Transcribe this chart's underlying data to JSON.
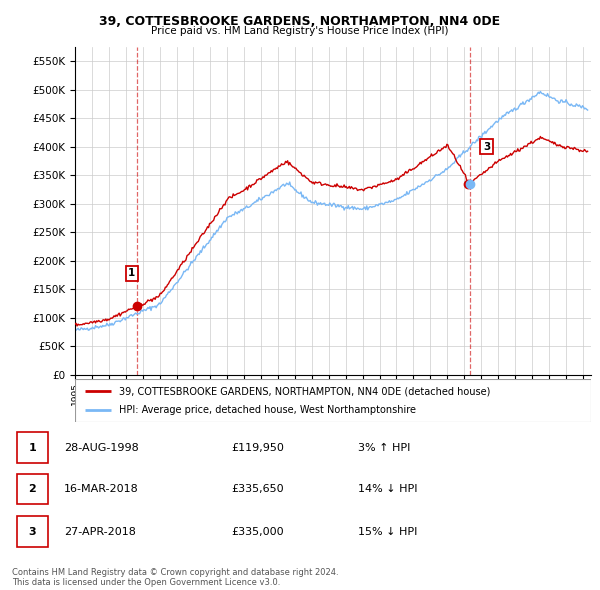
{
  "title": "39, COTTESBROOKE GARDENS, NORTHAMPTON, NN4 0DE",
  "subtitle": "Price paid vs. HM Land Registry's House Price Index (HPI)",
  "ylim": [
    0,
    575000
  ],
  "yticks": [
    0,
    50000,
    100000,
    150000,
    200000,
    250000,
    300000,
    350000,
    400000,
    450000,
    500000,
    550000
  ],
  "xlim_start": 1995.0,
  "xlim_end": 2025.5,
  "legend_line1": "39, COTTESBROOKE GARDENS, NORTHAMPTON, NN4 0DE (detached house)",
  "legend_line2": "HPI: Average price, detached house, West Northamptonshire",
  "sale1_date": 1998.66,
  "sale1_price": 119950,
  "sale2_date": 2018.21,
  "sale2_price": 335650,
  "sale3_date": 2018.33,
  "sale3_price": 335000,
  "footer": "Contains HM Land Registry data © Crown copyright and database right 2024.\nThis data is licensed under the Open Government Licence v3.0.",
  "hpi_color": "#7ab8f5",
  "price_color": "#cc0000",
  "vline_color": "#cc0000",
  "background_color": "#ffffff",
  "grid_color": "#cccccc",
  "row_data": [
    {
      "num": "1",
      "date": "28-AUG-1998",
      "price": "£119,950",
      "hpi": "3% ↑ HPI"
    },
    {
      "num": "2",
      "date": "16-MAR-2018",
      "price": "£335,650",
      "hpi": "14% ↓ HPI"
    },
    {
      "num": "3",
      "date": "27-APR-2018",
      "price": "£335,000",
      "hpi": "15% ↓ HPI"
    }
  ]
}
